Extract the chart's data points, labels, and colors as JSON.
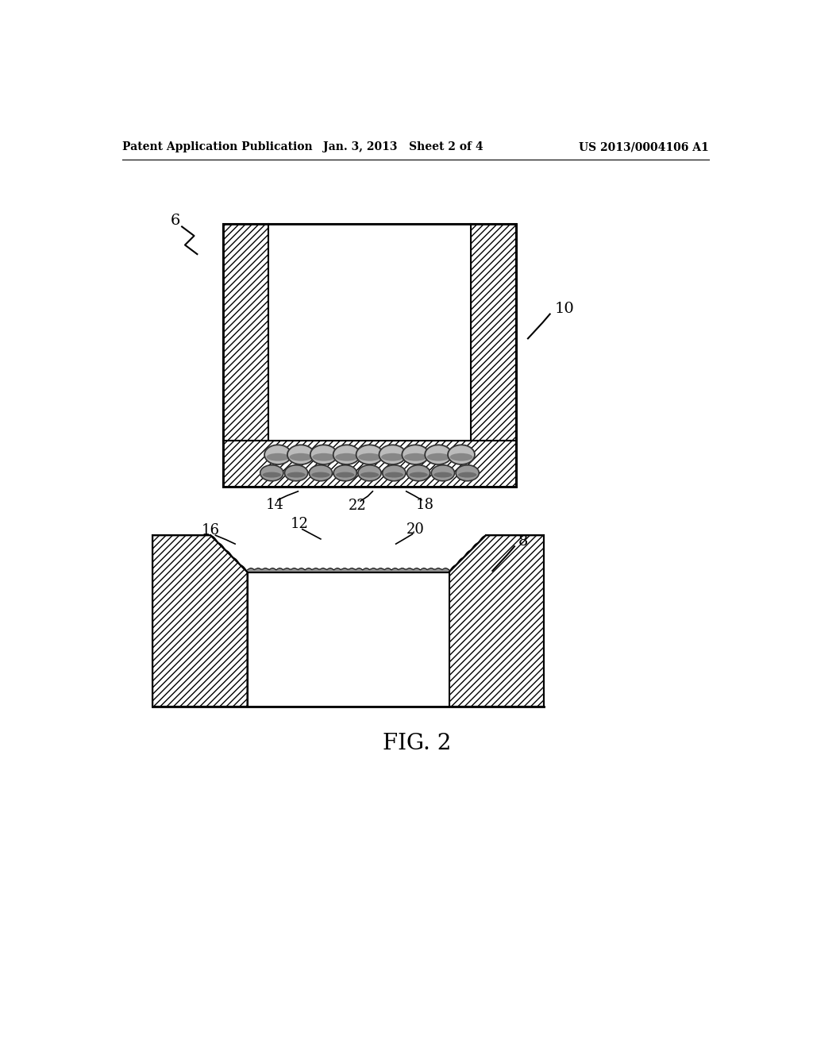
{
  "bg_color": "#ffffff",
  "header_left": "Patent Application Publication",
  "header_mid": "Jan. 3, 2013   Sheet 2 of 4",
  "header_right": "US 2013/0004106 A1",
  "fig_label": "FIG. 2",
  "label_6": "6",
  "label_8": "8",
  "label_10": "10",
  "label_12": "12",
  "label_14": "14",
  "label_16": "16",
  "label_18": "18",
  "label_20": "20",
  "label_22": "22"
}
